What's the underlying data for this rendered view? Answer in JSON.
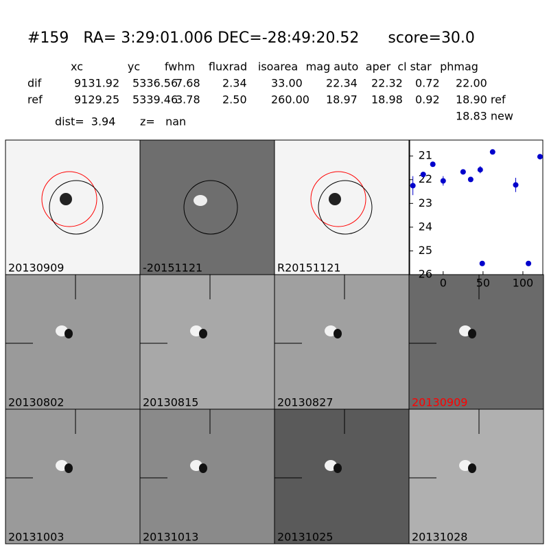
{
  "header": {
    "title": "#159   RA= 3:29:01.006 DEC=-28:49:20.52      score=30.0"
  },
  "table": {
    "columns": [
      "xc",
      "yc",
      "fwhm",
      "fluxrad",
      "isoarea",
      "mag auto",
      "aper",
      "cl star",
      "phmag"
    ],
    "rows": [
      [
        "dif",
        "9131.92",
        "5336.56",
        "7.68",
        "2.34",
        "33.00",
        "22.34",
        "22.32",
        "0.72",
        "22.00"
      ],
      [
        "ref",
        "9129.25",
        "5339.46",
        "3.78",
        "2.50",
        "260.00",
        "18.97",
        "18.98",
        "0.92",
        "18.90 ref"
      ]
    ],
    "extra": "18.83 new"
  },
  "dist": "dist=  3.94       z=   nan",
  "panels": [
    "20130909",
    "-20151121",
    "R20151121",
    "20130802",
    "20130815",
    "20130827",
    "20130909",
    "20131003",
    "20131013",
    "20131025",
    "20131028"
  ],
  "chart_data": {
    "type": "scatter",
    "color": "#0000cc",
    "x": [
      -38,
      -25,
      -13,
      0,
      25,
      34.5,
      46.5,
      49,
      62,
      91,
      107,
      121.5
    ],
    "values": [
      22.25,
      21.78,
      21.35,
      22.05,
      21.67,
      21.99,
      21.58,
      25.53,
      20.83,
      22.22,
      25.53,
      21.03
    ],
    "errors": [
      0.4,
      0.1,
      0.07,
      0.2,
      0.1,
      0.1,
      0.15,
      0.05,
      0.07,
      0.3,
      0.05,
      0.05
    ],
    "xlim": [
      -42,
      125
    ],
    "ylim": [
      26,
      20.33
    ],
    "xticks": [
      0,
      50,
      100
    ],
    "yticks": [
      21,
      22,
      23,
      24,
      25,
      26
    ]
  }
}
